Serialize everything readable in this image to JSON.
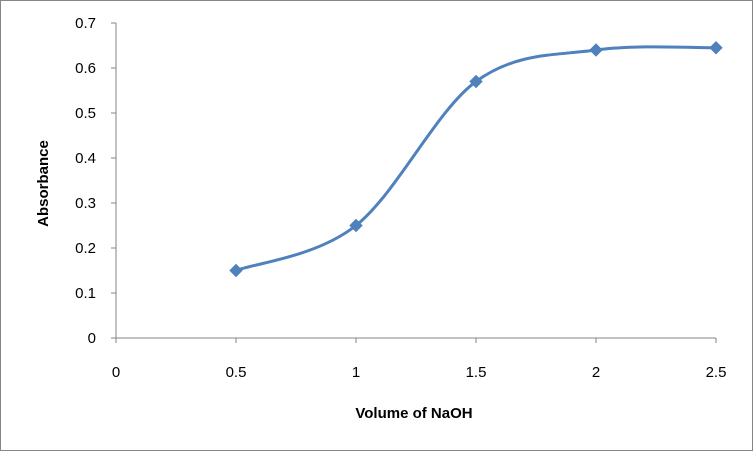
{
  "chart_data": {
    "type": "line",
    "title": "",
    "xlabel": "Volume of NaOH",
    "ylabel": "Absorbance",
    "xlim": [
      0,
      2.5
    ],
    "ylim": [
      0,
      0.7
    ],
    "x_ticks": [
      0,
      0.5,
      1,
      1.5,
      2,
      2.5
    ],
    "y_ticks": [
      0,
      0.1,
      0.2,
      0.3,
      0.4,
      0.5,
      0.6,
      0.7
    ],
    "x_tick_labels": [
      "0",
      "0.5",
      "1",
      "1.5",
      "2",
      "2.5"
    ],
    "y_tick_labels": [
      "0",
      "0.1",
      "0.2",
      "0.3",
      "0.4",
      "0.5",
      "0.6",
      "0.7"
    ],
    "grid": false,
    "legend": "none",
    "smooth": true,
    "marker": "diamond",
    "series": [
      {
        "color": "#4f81bd",
        "x": [
          0.5,
          1,
          1.5,
          2,
          2.5
        ],
        "y": [
          0.15,
          0.25,
          0.57,
          0.64,
          0.645
        ]
      }
    ]
  }
}
